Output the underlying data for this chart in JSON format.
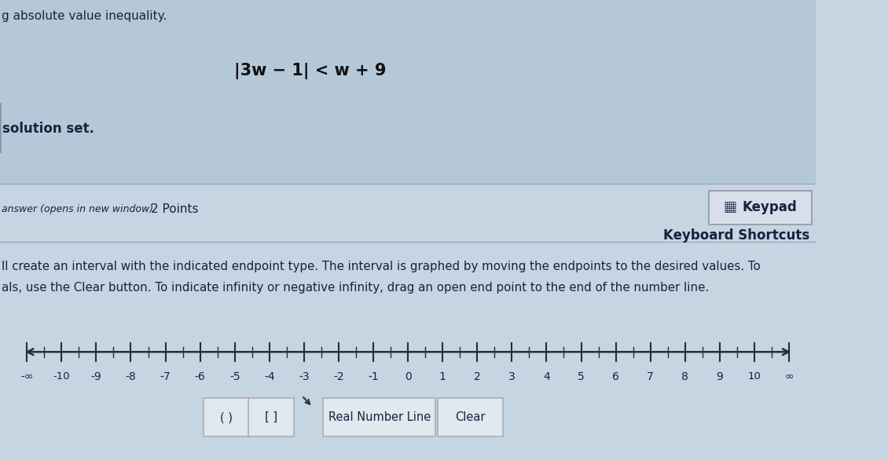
{
  "bg_color": "#c5d5e2",
  "header_bg": "#b5c8d8",
  "title_text": "|3w − 1| < w + 9",
  "solution_set_text": "solution set.",
  "answer_italic": "answer (opens in new window)",
  "answer_points": "2 Points",
  "keypad_text": "Keypad",
  "keyboard_shortcuts_text": "Keyboard Shortcuts",
  "instruction_line1": "ll create an interval with the indicated endpoint type. The interval is graphed by moving the endpoints to the desired values. To",
  "instruction_line2": "als, use the Clear button. To indicate infinity or negative infinity, drag an open end point to the end of the number line.",
  "number_line_labels": [
    "-∞",
    "-10",
    "-9",
    "-8",
    "-7",
    "-6",
    "-5",
    "-4",
    "-3",
    "-2",
    "-1",
    "0",
    "1",
    "2",
    "3",
    "4",
    "5",
    "6",
    "7",
    "8",
    "9",
    "10",
    "∞"
  ],
  "button_labels": [
    "( )",
    "[ ]",
    "Real Number Line",
    "Clear"
  ],
  "tick_color": "#2a2a3a",
  "line_color": "#2a2a3a",
  "text_color": "#1a1a2e",
  "dark_text_color": "#1a2040",
  "keypad_box_edge": "#999aaa",
  "keypad_box_face": "#d8dfe8",
  "button_edge": "#aaaaaa",
  "button_face": "#e0e8f0",
  "sep_line_color": "#9aaabb"
}
